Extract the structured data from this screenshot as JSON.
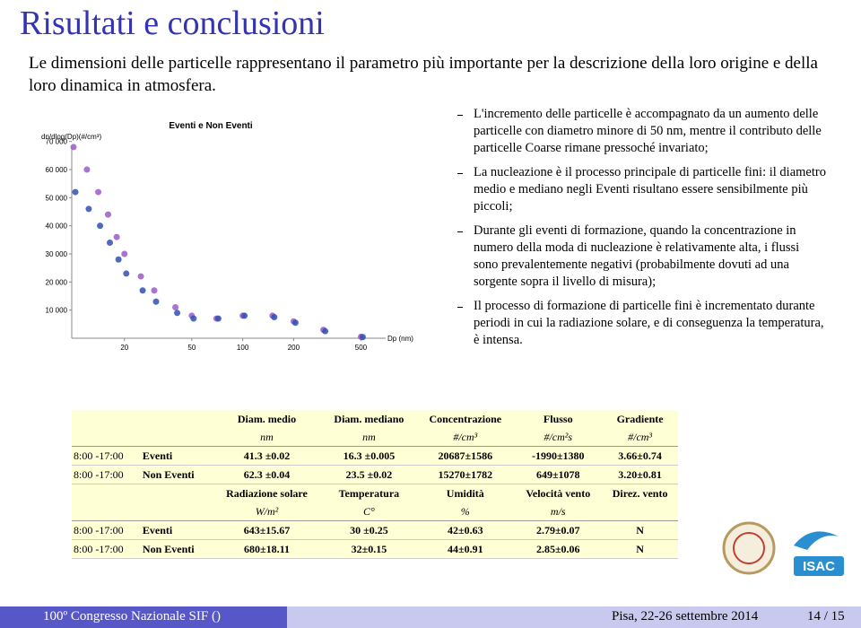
{
  "title": "Risultati e conclusioni",
  "intro": "Le dimensioni delle particelle rappresentano il parametro più importante per la descrizione della loro origine e della loro dinamica in atmosfera.",
  "figure": {
    "type": "scatter",
    "title": "Eventi e Non Eventi",
    "y_label": "dn/dlog(Dp)(#/cm³)",
    "x_label": "Dp (nm)",
    "log_x": true,
    "xlim": [
      10,
      700
    ],
    "ylim": [
      0,
      75000
    ],
    "xticks": [
      20,
      50,
      100,
      200,
      500
    ],
    "yticks": [
      {
        "value": 10000,
        "label": "10 000"
      },
      {
        "value": 20000,
        "label": "20 000"
      },
      {
        "value": 30000,
        "label": "30 000"
      },
      {
        "value": 40000,
        "label": "40 000"
      },
      {
        "value": 50000,
        "label": "50 000"
      },
      {
        "value": 60000,
        "label": "60 000"
      },
      {
        "value": 70000,
        "label": "70 000"
      }
    ],
    "x": [
      10,
      12,
      14,
      16,
      18,
      20,
      25,
      30,
      40,
      50,
      70,
      100,
      150,
      200,
      300,
      500
    ],
    "series": [
      {
        "name": "Eventi",
        "color": "#9b59c9",
        "values": [
          68000,
          60000,
          52000,
          44000,
          36000,
          30000,
          22000,
          17000,
          11000,
          8000,
          7000,
          8000,
          8000,
          6000,
          3000,
          500
        ]
      },
      {
        "name": "Non Eventi",
        "color": "#3050b0",
        "values": [
          52000,
          46000,
          40000,
          34000,
          28000,
          23000,
          17000,
          13000,
          9000,
          7000,
          7000,
          8000,
          7500,
          5500,
          2500,
          400
        ]
      }
    ]
  },
  "bullets": [
    "L'incremento delle particelle è accompagnato da un aumento delle particelle con diametro minore di 50 nm, mentre il contributo delle particelle Coarse rimane pressoché invariato;",
    "La nucleazione è il processo principale di particelle fini: il diametro medio e mediano negli Eventi risultano essere sensibilmente più piccoli;",
    "Durante gli eventi di formazione, quando la concentrazione in numero della moda di nucleazione è relativamente alta, i flussi sono prevalentemente negativi (probabilmente dovuti ad una sorgente sopra il livello di misura);",
    "Il processo di formazione di particelle fini è incrementato durante periodi in cui la radiazione solare, e di conseguenza la temperatura, è intensa."
  ],
  "tables": [
    {
      "headers": [
        "Diam. medio",
        "Diam. mediano",
        "Concentrazione",
        "Flusso",
        "Gradiente"
      ],
      "units": [
        "nm",
        "nm",
        "#/cm³",
        "#/cm²s",
        "#/cm³"
      ],
      "rows": [
        {
          "time": "8:00 -17:00",
          "group": "Eventi",
          "values": [
            "41.3 ±0.02",
            "16.3 ±0.005",
            "20687±1586",
            "-1990±1380",
            "3.66±0.74"
          ]
        },
        {
          "time": "8:00 -17:00",
          "group": "Non Eventi",
          "values": [
            "62.3 ±0.04",
            "23.5 ±0.02",
            "15270±1782",
            "649±1078",
            "3.20±0.81"
          ]
        }
      ]
    },
    {
      "headers": [
        "Radiazione solare",
        "Temperatura",
        "Umidità",
        "Velocità vento",
        "Direz. vento"
      ],
      "units": [
        "W/m²",
        "C°",
        "%",
        "m/s",
        ""
      ],
      "rows": [
        {
          "time": "8:00 -17:00",
          "group": "Eventi",
          "values": [
            "643±15.67",
            "30 ±0.25",
            "42±0.63",
            "2.79±0.07",
            "N"
          ]
        },
        {
          "time": "8:00 -17:00",
          "group": "Non Eventi",
          "values": [
            "680±18.11",
            "32±0.15",
            "44±0.91",
            "2.85±0.06",
            "N"
          ]
        }
      ]
    }
  ],
  "logo_text": "ISAC",
  "footer": {
    "left": "100º Congresso Nazionale SIF ()",
    "right": "Pisa, 22-26 settembre 2014",
    "page": "14 / 15"
  }
}
